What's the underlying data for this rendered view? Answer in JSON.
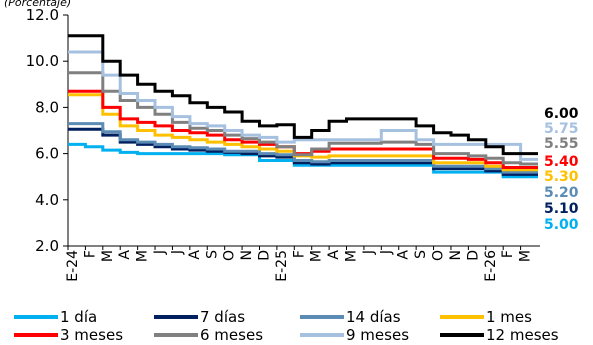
{
  "chart_data": {
    "type": "line",
    "title": "",
    "ylabel": "(Porcentaje)",
    "ylim": [
      2,
      12
    ],
    "yticks": [
      "2.0",
      "4.0",
      "6.0",
      "8.0",
      "10.0",
      "12.0"
    ],
    "x": [
      "E-24",
      "F",
      "M",
      "A",
      "M",
      "J",
      "J",
      "A",
      "S",
      "O",
      "N",
      "D",
      "E-25",
      "F",
      "M",
      "A",
      "M",
      "J",
      "J",
      "A",
      "S",
      "O",
      "N",
      "D",
      "E-26",
      "F",
      "M"
    ],
    "grid": false,
    "legend_position": "bottom",
    "series": [
      {
        "name": "1 día",
        "color": "#00b0f0",
        "end_label": "5.00",
        "values": [
          6.4,
          6.3,
          6.15,
          6.05,
          6.0,
          6.0,
          6.0,
          6.0,
          6.0,
          5.95,
          5.95,
          5.7,
          5.7,
          5.5,
          5.5,
          5.5,
          5.5,
          5.5,
          5.5,
          5.5,
          5.5,
          5.2,
          5.2,
          5.2,
          5.2,
          5.0,
          5.0
        ]
      },
      {
        "name": "7 días",
        "color": "#002060",
        "end_label": "5.10",
        "values": [
          7.05,
          7.05,
          6.8,
          6.5,
          6.4,
          6.3,
          6.2,
          6.15,
          6.1,
          6.05,
          6.0,
          5.9,
          5.85,
          5.6,
          5.55,
          5.6,
          5.6,
          5.6,
          5.6,
          5.6,
          5.6,
          5.35,
          5.35,
          5.35,
          5.25,
          5.1,
          5.1
        ]
      },
      {
        "name": "14 días",
        "color": "#5b8cb5",
        "end_label": "5.20",
        "values": [
          7.3,
          7.3,
          6.95,
          6.6,
          6.5,
          6.4,
          6.3,
          6.25,
          6.2,
          6.1,
          6.1,
          6.0,
          5.95,
          5.7,
          5.65,
          5.7,
          5.7,
          5.7,
          5.7,
          5.7,
          5.7,
          5.45,
          5.45,
          5.45,
          5.35,
          5.2,
          5.2
        ]
      },
      {
        "name": "1 mes",
        "color": "#ffc000",
        "end_label": "5.30",
        "values": [
          8.55,
          8.55,
          7.7,
          7.2,
          7.0,
          6.8,
          6.7,
          6.6,
          6.5,
          6.4,
          6.3,
          6.2,
          6.1,
          5.9,
          5.85,
          5.9,
          5.9,
          5.9,
          5.9,
          5.9,
          5.9,
          5.6,
          5.6,
          5.6,
          5.45,
          5.3,
          5.3
        ]
      },
      {
        "name": "3 meses",
        "color": "#ff0000",
        "end_label": "5.40",
        "values": [
          8.7,
          8.7,
          8.0,
          7.5,
          7.35,
          7.2,
          7.0,
          6.9,
          6.8,
          6.6,
          6.5,
          6.4,
          6.3,
          6.0,
          6.1,
          6.2,
          6.2,
          6.2,
          6.2,
          6.2,
          6.2,
          5.8,
          5.8,
          5.75,
          5.6,
          5.4,
          5.4
        ]
      },
      {
        "name": "6 meses",
        "color": "#808080",
        "end_label": "5.55",
        "values": [
          9.5,
          9.5,
          8.7,
          8.3,
          8.0,
          7.7,
          7.35,
          7.1,
          7.0,
          6.8,
          6.65,
          6.5,
          6.3,
          5.95,
          6.2,
          6.45,
          6.45,
          6.45,
          6.5,
          6.5,
          6.4,
          6.0,
          6.0,
          5.9,
          5.8,
          5.6,
          5.55
        ]
      },
      {
        "name": "9 meses",
        "color": "#a6c0e0",
        "end_label": "5.75",
        "values": [
          10.4,
          10.4,
          9.4,
          8.6,
          8.3,
          8.0,
          7.6,
          7.3,
          7.2,
          7.0,
          6.8,
          6.7,
          6.5,
          6.6,
          6.6,
          6.6,
          6.6,
          6.6,
          7.0,
          7.0,
          6.6,
          6.4,
          6.4,
          6.4,
          6.4,
          6.4,
          5.75
        ]
      },
      {
        "name": "12 meses",
        "color": "#000000",
        "end_label": "6.00",
        "values": [
          11.1,
          11.1,
          10.0,
          9.4,
          9.0,
          8.7,
          8.5,
          8.2,
          8.0,
          7.8,
          7.4,
          7.2,
          7.25,
          6.7,
          7.0,
          7.4,
          7.5,
          7.5,
          7.5,
          7.5,
          7.2,
          6.9,
          6.8,
          6.6,
          6.3,
          6.0,
          6.0
        ]
      }
    ]
  }
}
